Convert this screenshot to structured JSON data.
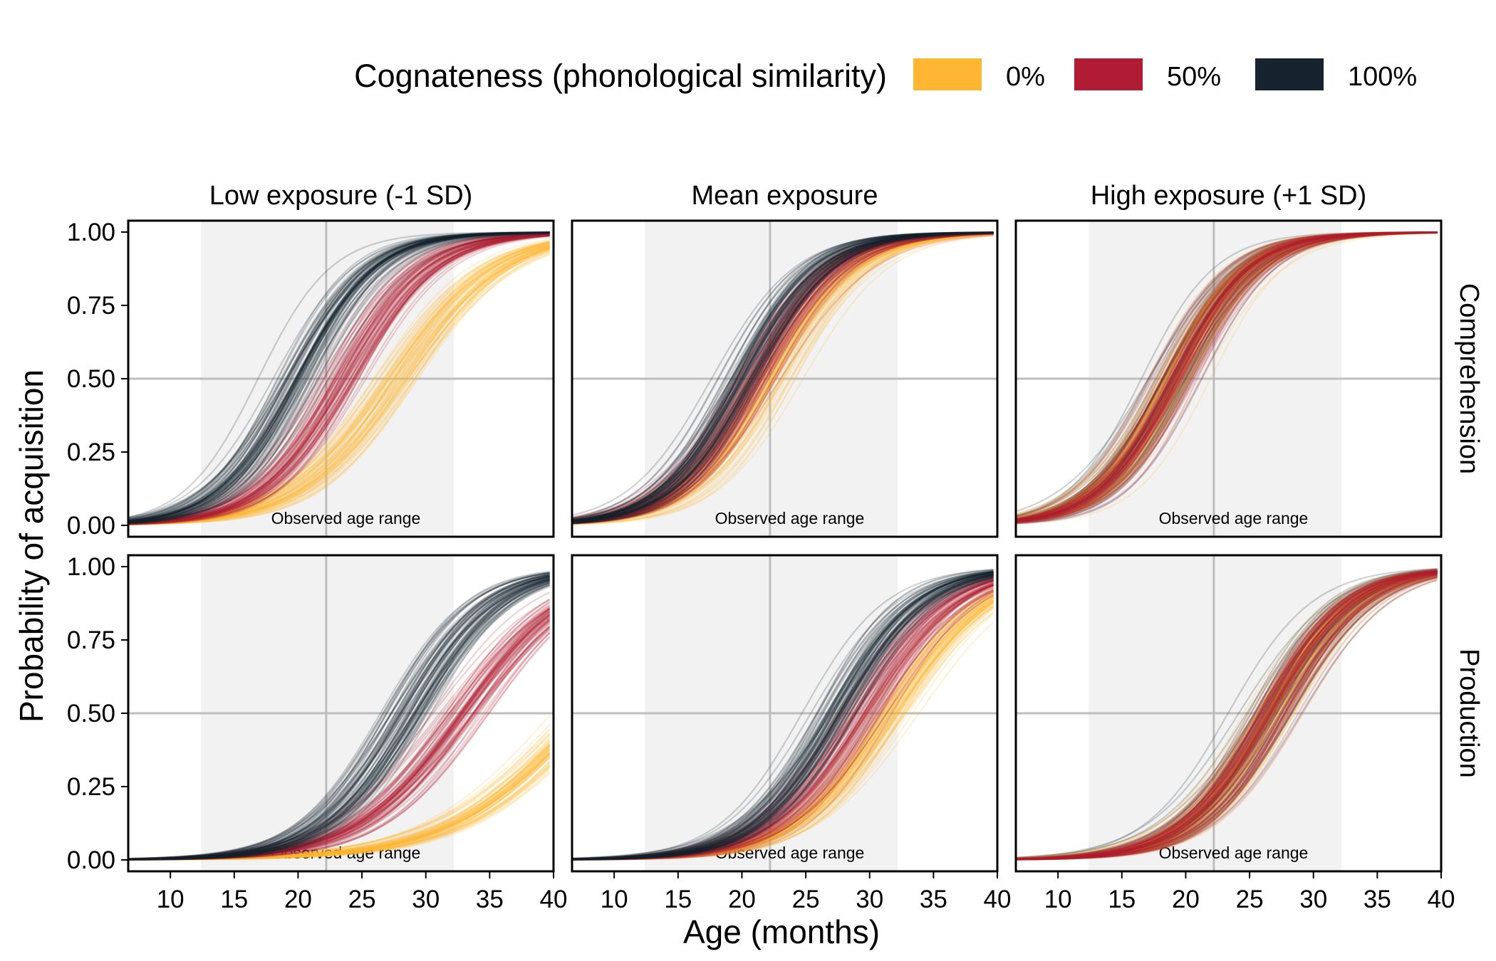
{
  "legend": {
    "title": "Cognateness (phonological similarity)",
    "items": [
      {
        "label": "0%",
        "color": "#FFB733"
      },
      {
        "label": "50%",
        "color": "#B01C34"
      },
      {
        "label": "100%",
        "color": "#14232E"
      }
    ]
  },
  "chart_data": {
    "type": "line",
    "title": "",
    "xlabel": "Age (months)",
    "ylabel": "Probability of acquisition",
    "xlim": [
      6.7,
      40
    ],
    "ylim": [
      0,
      1
    ],
    "x_ticks": [
      10,
      15,
      20,
      25,
      30,
      35,
      40
    ],
    "y_ticks": [
      "0.00",
      "0.25",
      "0.50",
      "0.75",
      "1.00"
    ],
    "reference_lines": {
      "x": 22.2,
      "y": 0.5
    },
    "shaded_band": {
      "x_from": 12.4,
      "x_to": 32.2,
      "label": "Observed age range"
    },
    "grid": true,
    "legend_position": "top",
    "columns": [
      "Low exposure (-1 SD)",
      "Mean exposure",
      "High exposure (+1 SD)"
    ],
    "rows": [
      "Comprehension",
      "Production"
    ],
    "series_keys": [
      "0%",
      "50%",
      "100%"
    ],
    "panels": [
      {
        "row": "Comprehension",
        "column": "Low exposure (-1 SD)",
        "curves": [
          {
            "series": "0%",
            "midpoint": 27.8,
            "slope": 0.25
          },
          {
            "series": "50%",
            "midpoint": 23.4,
            "slope": 0.3
          },
          {
            "series": "100%",
            "midpoint": 20.0,
            "slope": 0.33
          }
        ]
      },
      {
        "row": "Comprehension",
        "column": "Mean exposure",
        "curves": [
          {
            "series": "0%",
            "midpoint": 22.3,
            "slope": 0.3
          },
          {
            "series": "50%",
            "midpoint": 21.0,
            "slope": 0.31
          },
          {
            "series": "100%",
            "midpoint": 20.0,
            "slope": 0.32
          }
        ]
      },
      {
        "row": "Comprehension",
        "column": "High exposure (+1 SD)",
        "curves": [
          {
            "series": "0%",
            "midpoint": 19.1,
            "slope": 0.33
          },
          {
            "series": "50%",
            "midpoint": 19.1,
            "slope": 0.33
          },
          {
            "series": "100%",
            "midpoint": 19.1,
            "slope": 0.33
          }
        ]
      },
      {
        "row": "Production",
        "column": "Low exposure (-1 SD)",
        "curves": [
          {
            "series": "0%",
            "midpoint": 42.5,
            "slope": 0.19
          },
          {
            "series": "50%",
            "midpoint": 32.8,
            "slope": 0.24
          },
          {
            "series": "100%",
            "midpoint": 28.4,
            "slope": 0.29
          }
        ]
      },
      {
        "row": "Production",
        "column": "Mean exposure",
        "curves": [
          {
            "series": "0%",
            "midpoint": 31.8,
            "slope": 0.26
          },
          {
            "series": "50%",
            "midpoint": 29.4,
            "slope": 0.28
          },
          {
            "series": "100%",
            "midpoint": 27.4,
            "slope": 0.3
          }
        ]
      },
      {
        "row": "Production",
        "column": "High exposure (+1 SD)",
        "curves": [
          {
            "series": "0%",
            "midpoint": 26.7,
            "slope": 0.3
          },
          {
            "series": "50%",
            "midpoint": 26.7,
            "slope": 0.3
          },
          {
            "series": "100%",
            "midpoint": 26.7,
            "slope": 0.3
          }
        ]
      }
    ]
  }
}
